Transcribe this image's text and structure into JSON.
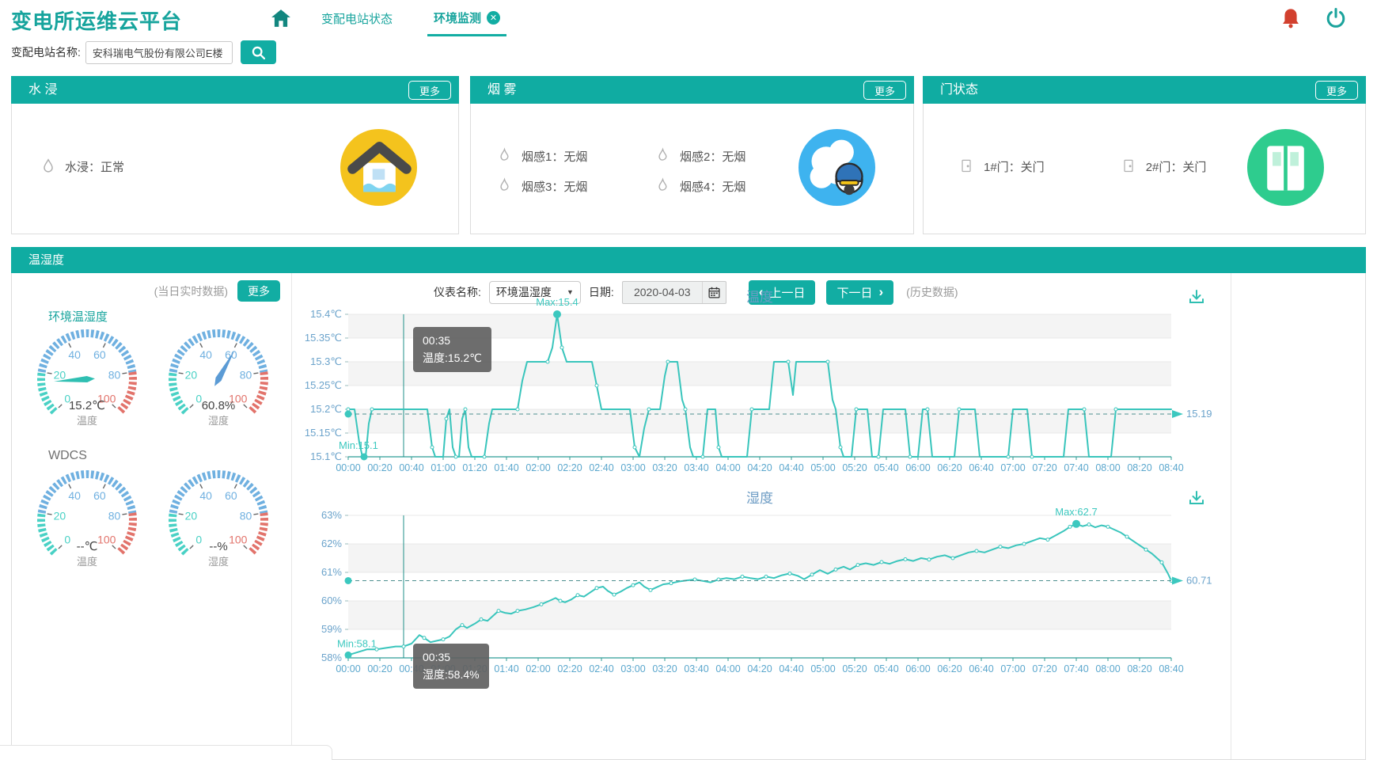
{
  "app": {
    "title": "变电所运维云平台"
  },
  "nav": {
    "tabs": [
      {
        "label": "变配电站状态",
        "active": false
      },
      {
        "label": "环境监测",
        "active": true,
        "close_icon": "✕"
      }
    ]
  },
  "search": {
    "label": "变配电站名称:",
    "value": "安科瑞电气股份有限公司E楼"
  },
  "panels": {
    "water": {
      "title": "水 浸",
      "more_label": "更多",
      "items": [
        {
          "text": "水浸：正常"
        }
      ]
    },
    "smoke": {
      "title": "烟 雾",
      "more_label": "更多",
      "items": [
        {
          "text": "烟感1：无烟"
        },
        {
          "text": "烟感2：无烟"
        },
        {
          "text": "烟感3：无烟"
        },
        {
          "text": "烟感4：无烟"
        }
      ]
    },
    "door": {
      "title": "门状态",
      "more_label": "更多",
      "items": [
        {
          "text": "1#门：关门"
        },
        {
          "text": "2#门：关门"
        }
      ]
    }
  },
  "env": {
    "title": "温湿度",
    "realtime_label": "(当日实时数据)",
    "more_label": "更多",
    "gauge_ticks": [
      0,
      20,
      40,
      60,
      80,
      100
    ],
    "groups": [
      {
        "name": "环境温湿度",
        "gauges": [
          {
            "value": 15.2,
            "display": "15.2℃",
            "label": "温度",
            "needle_color": "#2fbfb2"
          },
          {
            "value": 60.8,
            "display": "60.8%",
            "label": "湿度",
            "needle_color": "#5b9bd5"
          }
        ]
      },
      {
        "name": "WDCS",
        "gauges": [
          {
            "value": null,
            "display": "--℃",
            "label": "温度",
            "needle_color": "#2fbfb2"
          },
          {
            "value": null,
            "display": "--%",
            "label": "湿度",
            "needle_color": "#5b9bd5"
          }
        ]
      }
    ],
    "controls": {
      "meter_label": "仪表名称:",
      "meter_value": "环境温湿度",
      "date_label": "日期:",
      "date_value": "2020-04-03",
      "prev_label": "上一日",
      "next_label": "下一日",
      "history_label": "(历史数据)"
    }
  },
  "colors": {
    "teal": "#12ada3",
    "line": "#39c5bc",
    "axis": "#2f9e96",
    "tick_label": "#5ba7cd",
    "y_label": "#6ba3cb",
    "annotation": "#3cc8bf",
    "avg_line": "#4e8f8f",
    "title": "#6d9cc4",
    "band": "#f4f4f4",
    "grid": "#e9e9e9",
    "gauge_low": "#49d1c5",
    "gauge_mid": "#6fb0e0",
    "gauge_high": "#e2736b"
  },
  "chart_data": [
    {
      "type": "line",
      "title": "温度",
      "unit": "℃",
      "ylim": [
        15.1,
        15.4
      ],
      "yticks": [
        15.4,
        15.35,
        15.3,
        15.25,
        15.2,
        15.15,
        15.1
      ],
      "ytick_labels": [
        "15.4℃",
        "15.35℃",
        "15.3℃",
        "15.25℃",
        "15.2℃",
        "15.15℃",
        "15.1℃"
      ],
      "xticks": [
        "00:00",
        "00:20",
        "00:40",
        "01:00",
        "01:20",
        "01:40",
        "02:00",
        "02:20",
        "02:40",
        "03:00",
        "03:20",
        "03:40",
        "04:00",
        "04:20",
        "04:40",
        "05:00",
        "05:20",
        "05:40",
        "06:00",
        "06:20",
        "06:40",
        "07:00",
        "07:20",
        "07:40",
        "08:00",
        "08:20",
        "08:40"
      ],
      "x_minutes_range": [
        0,
        520
      ],
      "shade": "even",
      "avg": 15.19,
      "avg_label": "15.19",
      "max": {
        "t_min": 132,
        "v": 15.4,
        "label": "Max:15.4"
      },
      "min": {
        "t_min": 10,
        "v": 15.1,
        "label": "Min:15.1"
      },
      "cursor_min": 35,
      "tooltip": {
        "line1": "00:35",
        "line2": "温度:15.2℃"
      },
      "points": [
        [
          0,
          15.2
        ],
        [
          4,
          15.2
        ],
        [
          7,
          15.13
        ],
        [
          9,
          15.1
        ],
        [
          11,
          15.1
        ],
        [
          13,
          15.17
        ],
        [
          15,
          15.2
        ],
        [
          46,
          15.2
        ],
        [
          50,
          15.2
        ],
        [
          53,
          15.12
        ],
        [
          55,
          15.1
        ],
        [
          60,
          15.1
        ],
        [
          62,
          15.18
        ],
        [
          64,
          15.2
        ],
        [
          66,
          15.12
        ],
        [
          68,
          15.1
        ],
        [
          70,
          15.1
        ],
        [
          72,
          15.18
        ],
        [
          74,
          15.2
        ],
        [
          76,
          15.12
        ],
        [
          78,
          15.1
        ],
        [
          86,
          15.1
        ],
        [
          89,
          15.17
        ],
        [
          91,
          15.2
        ],
        [
          107,
          15.2
        ],
        [
          110,
          15.26
        ],
        [
          113,
          15.3
        ],
        [
          126,
          15.3
        ],
        [
          129,
          15.33
        ],
        [
          132,
          15.4
        ],
        [
          135,
          15.33
        ],
        [
          138,
          15.3
        ],
        [
          154,
          15.3
        ],
        [
          157,
          15.25
        ],
        [
          160,
          15.2
        ],
        [
          178,
          15.2
        ],
        [
          181,
          15.12
        ],
        [
          184,
          15.1
        ],
        [
          187,
          15.16
        ],
        [
          190,
          15.2
        ],
        [
          197,
          15.2
        ],
        [
          200,
          15.27
        ],
        [
          202,
          15.3
        ],
        [
          208,
          15.3
        ],
        [
          211,
          15.22
        ],
        [
          213,
          15.2
        ],
        [
          216,
          15.12
        ],
        [
          218,
          15.1
        ],
        [
          224,
          15.1
        ],
        [
          227,
          15.2
        ],
        [
          232,
          15.2
        ],
        [
          234,
          15.12
        ],
        [
          236,
          15.1
        ],
        [
          252,
          15.1
        ],
        [
          255,
          15.2
        ],
        [
          266,
          15.2
        ],
        [
          269,
          15.3
        ],
        [
          278,
          15.3
        ],
        [
          281,
          15.23
        ],
        [
          283,
          15.3
        ],
        [
          303,
          15.3
        ],
        [
          306,
          15.22
        ],
        [
          308,
          15.2
        ],
        [
          311,
          15.12
        ],
        [
          313,
          15.1
        ],
        [
          318,
          15.1
        ],
        [
          321,
          15.2
        ],
        [
          328,
          15.2
        ],
        [
          331,
          15.1
        ],
        [
          335,
          15.1
        ],
        [
          338,
          15.2
        ],
        [
          352,
          15.2
        ],
        [
          355,
          15.1
        ],
        [
          360,
          15.1
        ],
        [
          363,
          15.2
        ],
        [
          366,
          15.2
        ],
        [
          369,
          15.1
        ],
        [
          383,
          15.1
        ],
        [
          386,
          15.2
        ],
        [
          396,
          15.2
        ],
        [
          399,
          15.1
        ],
        [
          417,
          15.1
        ],
        [
          420,
          15.2
        ],
        [
          429,
          15.2
        ],
        [
          432,
          15.1
        ],
        [
          452,
          15.1
        ],
        [
          455,
          15.2
        ],
        [
          465,
          15.2
        ],
        [
          468,
          15.1
        ],
        [
          482,
          15.1
        ],
        [
          485,
          15.2
        ],
        [
          520,
          15.2
        ]
      ]
    },
    {
      "type": "line",
      "title": "湿度",
      "unit": "%",
      "ylim": [
        58,
        63
      ],
      "yticks": [
        63,
        62,
        61,
        60,
        59,
        58
      ],
      "ytick_labels": [
        "63%",
        "62%",
        "61%",
        "60%",
        "59%",
        "58%"
      ],
      "xticks": [
        "00:00",
        "00:20",
        "00:40",
        "01:00",
        "01:20",
        "01:40",
        "02:00",
        "02:20",
        "02:40",
        "03:00",
        "03:20",
        "03:40",
        "04:00",
        "04:20",
        "04:40",
        "05:00",
        "05:20",
        "05:40",
        "06:00",
        "06:20",
        "06:40",
        "07:00",
        "07:20",
        "07:40",
        "08:00",
        "08:20",
        "08:40"
      ],
      "x_minutes_range": [
        0,
        520
      ],
      "shade": "odd",
      "avg": 60.71,
      "avg_label": "60.71",
      "max": {
        "t_min": 460,
        "v": 62.7,
        "label": "Max:62.7"
      },
      "min": {
        "t_min": 0,
        "v": 58.1,
        "label": "Min:58.1"
      },
      "cursor_min": 35,
      "tooltip": {
        "line1": "00:35",
        "line2": "湿度:58.4%"
      },
      "points": [
        [
          0,
          58.1
        ],
        [
          6,
          58.2
        ],
        [
          12,
          58.3
        ],
        [
          18,
          58.3
        ],
        [
          24,
          58.35
        ],
        [
          30,
          58.4
        ],
        [
          35,
          58.4
        ],
        [
          40,
          58.5
        ],
        [
          45,
          58.8
        ],
        [
          48,
          58.7
        ],
        [
          52,
          58.55
        ],
        [
          56,
          58.6
        ],
        [
          60,
          58.65
        ],
        [
          64,
          58.75
        ],
        [
          68,
          59.0
        ],
        [
          72,
          59.15
        ],
        [
          75,
          59.05
        ],
        [
          80,
          59.2
        ],
        [
          84,
          59.35
        ],
        [
          88,
          59.3
        ],
        [
          92,
          59.5
        ],
        [
          95,
          59.65
        ],
        [
          99,
          59.58
        ],
        [
          103,
          59.55
        ],
        [
          107,
          59.65
        ],
        [
          112,
          59.7
        ],
        [
          117,
          59.78
        ],
        [
          122,
          59.88
        ],
        [
          127,
          60.0
        ],
        [
          131,
          60.1
        ],
        [
          134,
          60.0
        ],
        [
          137,
          59.95
        ],
        [
          141,
          60.05
        ],
        [
          145,
          60.2
        ],
        [
          149,
          60.15
        ],
        [
          153,
          60.3
        ],
        [
          157,
          60.45
        ],
        [
          161,
          60.5
        ],
        [
          164,
          60.35
        ],
        [
          168,
          60.22
        ],
        [
          172,
          60.32
        ],
        [
          176,
          60.45
        ],
        [
          180,
          60.55
        ],
        [
          184,
          60.65
        ],
        [
          187,
          60.5
        ],
        [
          191,
          60.38
        ],
        [
          195,
          60.48
        ],
        [
          199,
          60.58
        ],
        [
          204,
          60.62
        ],
        [
          209,
          60.68
        ],
        [
          214,
          60.72
        ],
        [
          219,
          60.75
        ],
        [
          224,
          60.7
        ],
        [
          229,
          60.65
        ],
        [
          234,
          60.75
        ],
        [
          239,
          60.8
        ],
        [
          244,
          60.76
        ],
        [
          249,
          60.85
        ],
        [
          254,
          60.8
        ],
        [
          259,
          60.76
        ],
        [
          264,
          60.85
        ],
        [
          269,
          60.8
        ],
        [
          274,
          60.9
        ],
        [
          279,
          60.96
        ],
        [
          284,
          60.88
        ],
        [
          288,
          60.76
        ],
        [
          293,
          60.92
        ],
        [
          298,
          61.08
        ],
        [
          303,
          60.95
        ],
        [
          308,
          61.1
        ],
        [
          313,
          61.2
        ],
        [
          317,
          61.1
        ],
        [
          322,
          61.26
        ],
        [
          327,
          61.32
        ],
        [
          332,
          61.26
        ],
        [
          337,
          61.36
        ],
        [
          342,
          61.3
        ],
        [
          347,
          61.4
        ],
        [
          352,
          61.46
        ],
        [
          357,
          61.4
        ],
        [
          362,
          61.5
        ],
        [
          367,
          61.45
        ],
        [
          372,
          61.55
        ],
        [
          377,
          61.6
        ],
        [
          382,
          61.5
        ],
        [
          387,
          61.6
        ],
        [
          392,
          61.7
        ],
        [
          397,
          61.75
        ],
        [
          402,
          61.7
        ],
        [
          407,
          61.8
        ],
        [
          412,
          61.9
        ],
        [
          417,
          61.85
        ],
        [
          422,
          61.95
        ],
        [
          427,
          62.0
        ],
        [
          432,
          62.1
        ],
        [
          437,
          62.2
        ],
        [
          442,
          62.15
        ],
        [
          447,
          62.3
        ],
        [
          452,
          62.45
        ],
        [
          456,
          62.6
        ],
        [
          460,
          62.7
        ],
        [
          464,
          62.62
        ],
        [
          468,
          62.68
        ],
        [
          472,
          62.58
        ],
        [
          476,
          62.65
        ],
        [
          480,
          62.6
        ],
        [
          484,
          62.5
        ],
        [
          488,
          62.4
        ],
        [
          492,
          62.25
        ],
        [
          496,
          62.1
        ],
        [
          500,
          61.95
        ],
        [
          504,
          61.8
        ],
        [
          508,
          61.65
        ],
        [
          511,
          61.5
        ],
        [
          514,
          61.35
        ],
        [
          516,
          61.15
        ],
        [
          518,
          60.95
        ],
        [
          520,
          60.71
        ]
      ]
    }
  ]
}
